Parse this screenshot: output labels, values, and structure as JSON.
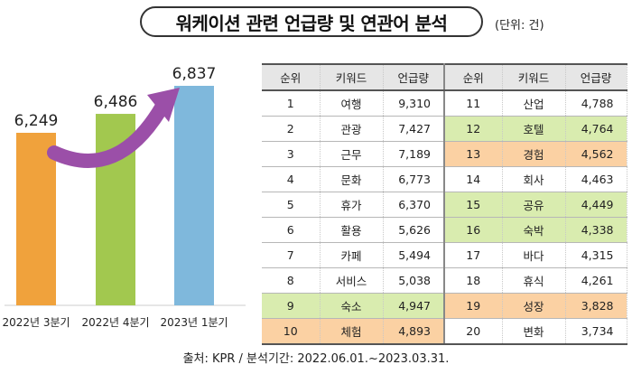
{
  "title": "워케이션 관련 언급량 및 연관어 분석",
  "unit": "(단위: 건)",
  "source": "출처: KPR / 분석기간: 2022.06.01.~2023.03.31.",
  "colors": {
    "bar_q3": "#f0a23c",
    "bar_q4": "#a2c84f",
    "bar_q1": "#7fb8dc",
    "arrow": "#9b4fa8",
    "highlight_green": "#d9ecaf",
    "highlight_orange": "#fbd1a3"
  },
  "chart_data": [
    {
      "type": "bar",
      "categories": [
        "2022년 3분기",
        "2022년 4분기",
        "2023년 1분기"
      ],
      "values": [
        6249,
        6486,
        6837
      ],
      "labels": [
        "6,249",
        "6,486",
        "6,837"
      ],
      "annotation": "upward arrow from 2022년 3분기 to 2023년 1분기"
    },
    {
      "type": "table",
      "columns": [
        "순위",
        "키워드",
        "언급량",
        "순위",
        "키워드",
        "언급량"
      ],
      "rows": [
        {
          "rank": "1",
          "keyword": "여행",
          "count": "9,310",
          "rank2": "11",
          "keyword2": "산업",
          "count2": "4,788",
          "hl": "",
          "hl2": ""
        },
        {
          "rank": "2",
          "keyword": "관광",
          "count": "7,427",
          "rank2": "12",
          "keyword2": "호텔",
          "count2": "4,764",
          "hl": "",
          "hl2": "green"
        },
        {
          "rank": "3",
          "keyword": "근무",
          "count": "7,189",
          "rank2": "13",
          "keyword2": "경험",
          "count2": "4,562",
          "hl": "",
          "hl2": "orange"
        },
        {
          "rank": "4",
          "keyword": "문화",
          "count": "6,773",
          "rank2": "14",
          "keyword2": "회사",
          "count2": "4,463",
          "hl": "",
          "hl2": ""
        },
        {
          "rank": "5",
          "keyword": "휴가",
          "count": "6,370",
          "rank2": "15",
          "keyword2": "공유",
          "count2": "4,449",
          "hl": "",
          "hl2": "green"
        },
        {
          "rank": "6",
          "keyword": "활용",
          "count": "5,626",
          "rank2": "16",
          "keyword2": "숙박",
          "count2": "4,338",
          "hl": "",
          "hl2": "green"
        },
        {
          "rank": "7",
          "keyword": "카페",
          "count": "5,494",
          "rank2": "17",
          "keyword2": "바다",
          "count2": "4,315",
          "hl": "",
          "hl2": ""
        },
        {
          "rank": "8",
          "keyword": "서비스",
          "count": "5,038",
          "rank2": "18",
          "keyword2": "휴식",
          "count2": "4,261",
          "hl": "",
          "hl2": ""
        },
        {
          "rank": "9",
          "keyword": "숙소",
          "count": "4,947",
          "rank2": "19",
          "keyword2": "성장",
          "count2": "3,828",
          "hl": "green",
          "hl2": "orange"
        },
        {
          "rank": "10",
          "keyword": "체험",
          "count": "4,893",
          "rank2": "20",
          "keyword2": "변화",
          "count2": "3,734",
          "hl": "orange",
          "hl2": ""
        }
      ]
    }
  ]
}
